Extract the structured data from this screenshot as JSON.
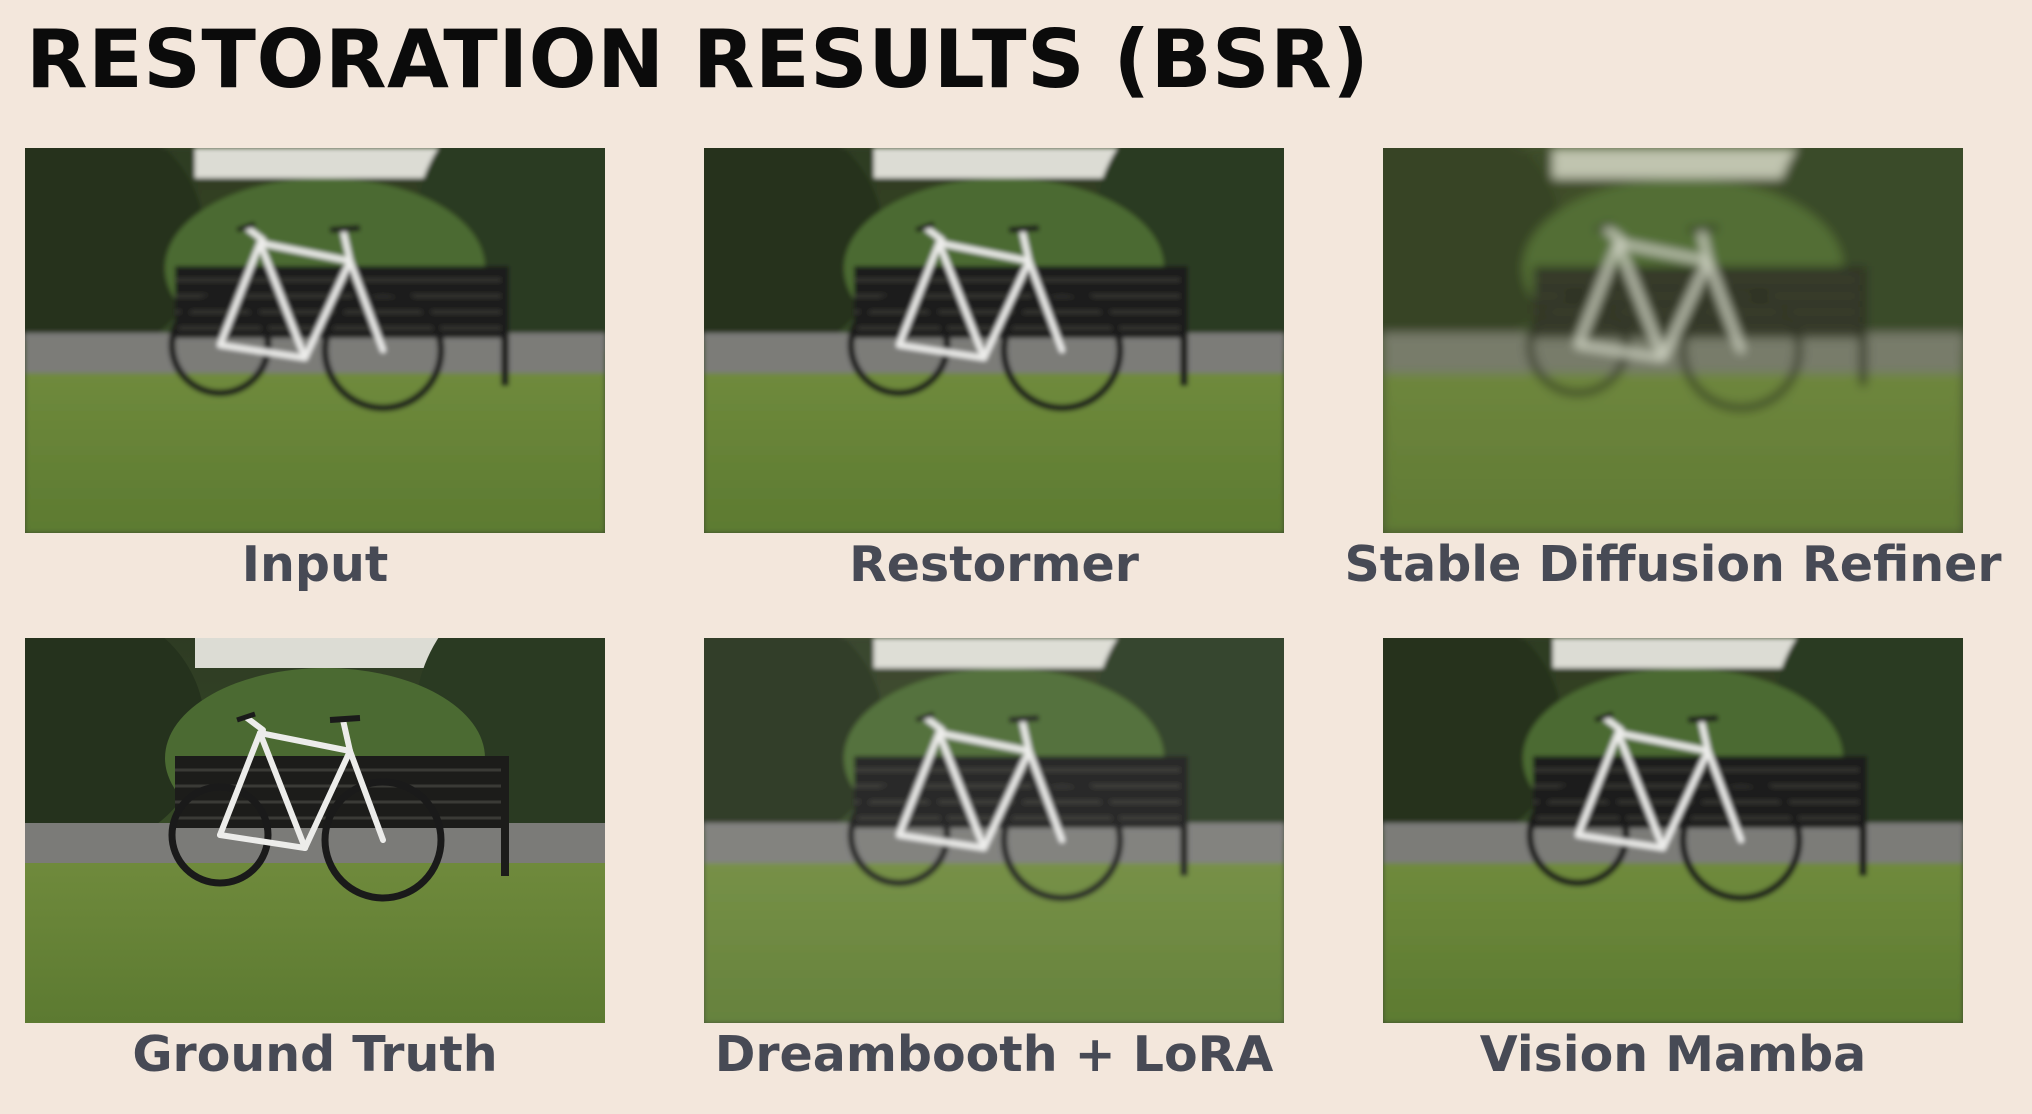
{
  "title": "RESTORATION RESULTS (BSR)",
  "panels": [
    {
      "label": "Input",
      "quality": "low"
    },
    {
      "label": "Restormer",
      "quality": "blurred"
    },
    {
      "label": "Stable Diffusion Refiner",
      "quality": "painterly"
    },
    {
      "label": "Ground Truth",
      "quality": "sharp"
    },
    {
      "label": "Dreambooth + LoRA",
      "quality": "restored"
    },
    {
      "label": "Vision Mamba",
      "quality": "restored-soft"
    }
  ]
}
